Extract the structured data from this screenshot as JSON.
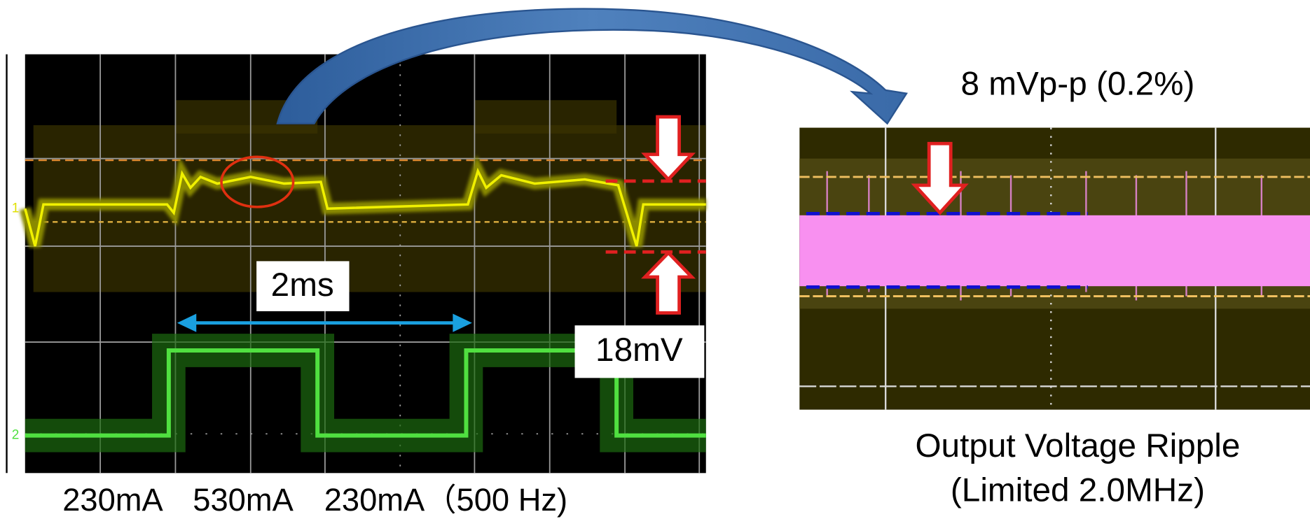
{
  "ripple_label": "8 mVp-p (0.2%)",
  "period_label": "2ms",
  "amplitude_label": "18mV",
  "load_labels": [
    "230mA",
    "530mA",
    "230mA（500 Hz)"
  ],
  "caption": [
    "Output Voltage Ripple",
    "(Limited 2.0MHz)"
  ]
}
